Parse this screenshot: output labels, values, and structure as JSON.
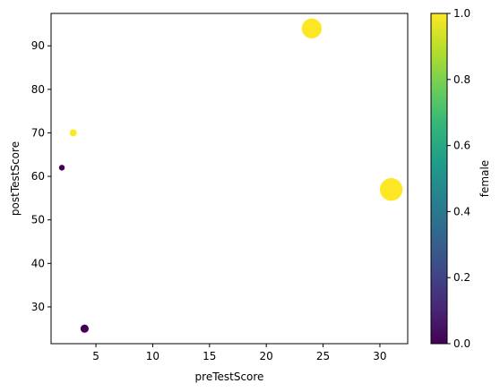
{
  "chart_data": {
    "type": "scatter",
    "title": "",
    "xlabel": "preTestScore",
    "ylabel": "postTestScore",
    "colorbar_label": "female",
    "xlim": [
      1.05,
      32.45
    ],
    "ylim": [
      21.55,
      97.45
    ],
    "x_ticks": [
      5,
      10,
      15,
      20,
      25,
      30
    ],
    "x_tick_labels": [
      "5",
      "10",
      "15",
      "20",
      "25",
      "30"
    ],
    "y_ticks": [
      30,
      40,
      50,
      60,
      70,
      80,
      90
    ],
    "y_tick_labels": [
      "30",
      "40",
      "50",
      "60",
      "70",
      "80",
      "90"
    ],
    "colorbar_ticks": [
      0.0,
      0.2,
      0.4,
      0.6,
      0.8,
      1.0
    ],
    "colorbar_tick_labels": [
      "0.0",
      "0.2",
      "0.4",
      "0.6",
      "0.8",
      "1.0"
    ],
    "colormap": "viridis",
    "colormap_stops": [
      "#440154",
      "#482878",
      "#3e4989",
      "#31688e",
      "#26828e",
      "#1f9e89",
      "#35b779",
      "#6ece58",
      "#b5de2b",
      "#fde725"
    ],
    "grid": false,
    "points": [
      {
        "x": 4,
        "y": 25,
        "female": 0,
        "size": 4
      },
      {
        "x": 24,
        "y": 94,
        "female": 1,
        "size": 24
      },
      {
        "x": 31,
        "y": 57,
        "female": 1,
        "size": 31
      },
      {
        "x": 2,
        "y": 62,
        "female": 0,
        "size": 2
      },
      {
        "x": 3,
        "y": 70,
        "female": 1,
        "size": 3
      }
    ]
  }
}
